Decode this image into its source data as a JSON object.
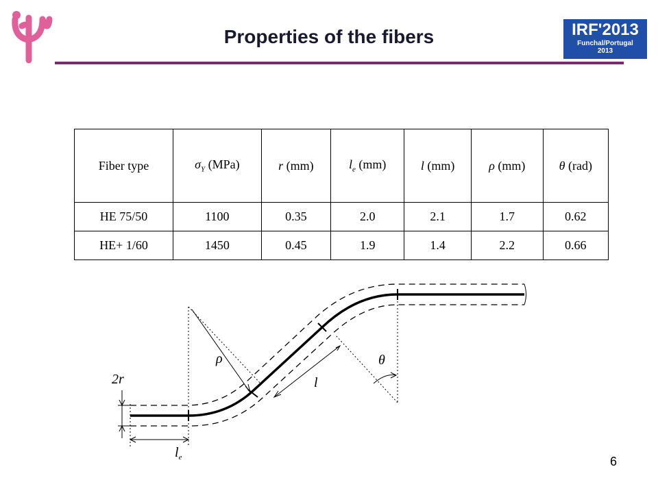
{
  "header": {
    "title": "Properties of the fibers",
    "badge": {
      "name": "IRF'2013",
      "place": "Funchal/Portugal",
      "year": "2013"
    }
  },
  "table": {
    "headers": [
      {
        "text": "Fiber type"
      },
      {
        "symbol": "σ",
        "sub": "Y",
        "unit": "(MPa)"
      },
      {
        "symbol": "r",
        "unit": "(mm)"
      },
      {
        "symbol": "l",
        "sub": "e",
        "unit": "(mm)"
      },
      {
        "symbol": "l",
        "unit": "(mm)"
      },
      {
        "symbol": "ρ",
        "unit": "(mm)"
      },
      {
        "symbol": "θ",
        "unit": "(rad)"
      }
    ],
    "rows": [
      [
        "HE 75/50",
        "1100",
        "0.35",
        "2.0",
        "2.1",
        "1.7",
        "0.62"
      ],
      [
        "HE+ 1/60",
        "1450",
        "0.45",
        "1.9",
        "1.4",
        "2.2",
        "0.66"
      ]
    ]
  },
  "diagram": {
    "labels": {
      "radius": "2r",
      "end_length": {
        "symbol": "l",
        "sub": "e"
      },
      "rho": "ρ",
      "length": "l",
      "theta": "θ"
    }
  },
  "footer": {
    "page": "6"
  }
}
